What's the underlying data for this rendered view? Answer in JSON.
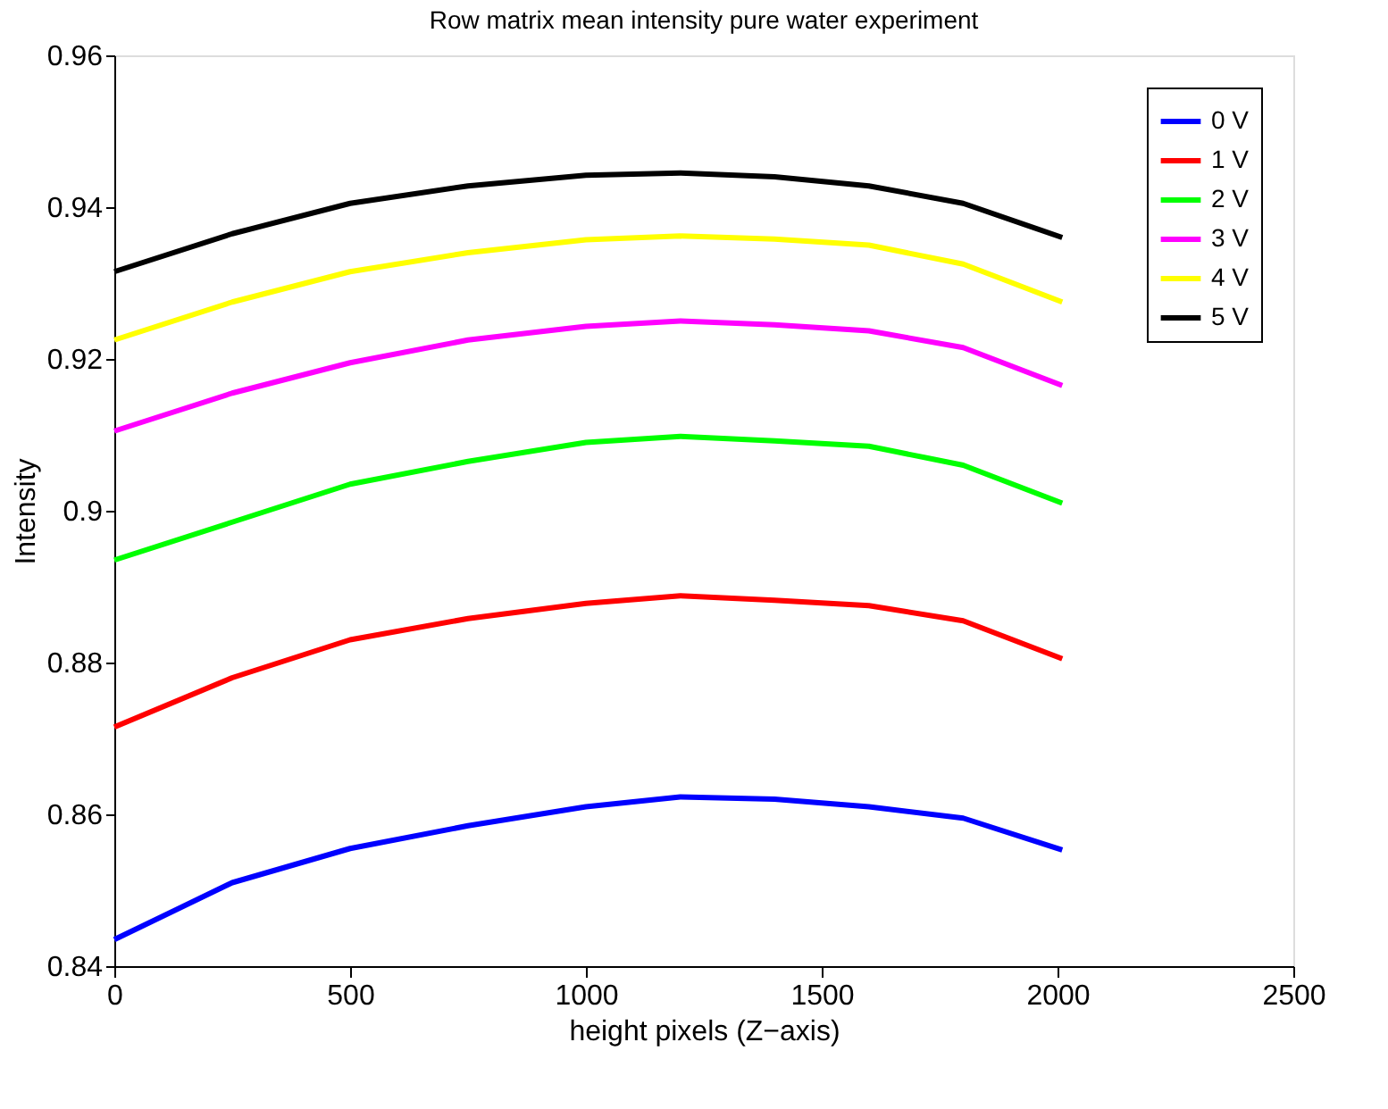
{
  "chart_data": {
    "type": "line",
    "title": "Row matrix mean intensity pure water experiment",
    "xlabel": "height pixels (Z−axis)",
    "ylabel": "Intensity",
    "x": [
      0,
      250,
      500,
      750,
      1000,
      1200,
      1400,
      1600,
      1800,
      2010
    ],
    "series": [
      {
        "name": "0 V",
        "color": "#0000ff",
        "values": [
          0.8435,
          0.851,
          0.8555,
          0.8585,
          0.861,
          0.8623,
          0.862,
          0.861,
          0.8595,
          0.8553
        ]
      },
      {
        "name": "1 V",
        "color": "#ff0000",
        "values": [
          0.8715,
          0.878,
          0.883,
          0.8858,
          0.8878,
          0.8888,
          0.8882,
          0.8875,
          0.8855,
          0.8805
        ]
      },
      {
        "name": "2 V",
        "color": "#00ff00",
        "values": [
          0.8935,
          0.8985,
          0.9035,
          0.9065,
          0.909,
          0.9098,
          0.9092,
          0.9085,
          0.906,
          0.901
        ]
      },
      {
        "name": "3 V",
        "color": "#ff00ff",
        "values": [
          0.9105,
          0.9155,
          0.9195,
          0.9225,
          0.9243,
          0.925,
          0.9245,
          0.9237,
          0.9215,
          0.9165
        ]
      },
      {
        "name": "4 V",
        "color": "#ffff00",
        "values": [
          0.9225,
          0.9275,
          0.9315,
          0.934,
          0.9357,
          0.9362,
          0.9358,
          0.935,
          0.9325,
          0.9275
        ]
      },
      {
        "name": "5 V",
        "color": "#000000",
        "values": [
          0.9315,
          0.9365,
          0.9405,
          0.9428,
          0.9442,
          0.9445,
          0.944,
          0.9428,
          0.9405,
          0.936
        ]
      }
    ],
    "xlim": [
      0,
      2500
    ],
    "xticks": [
      0,
      500,
      1000,
      1500,
      2000,
      2500
    ],
    "ylim": [
      0.84,
      0.96
    ],
    "yticks": [
      0.84,
      0.86,
      0.88,
      0.9,
      0.92,
      0.94,
      0.96
    ],
    "grid": false,
    "legend": "top right",
    "marker": "none",
    "line_style": "solid"
  }
}
